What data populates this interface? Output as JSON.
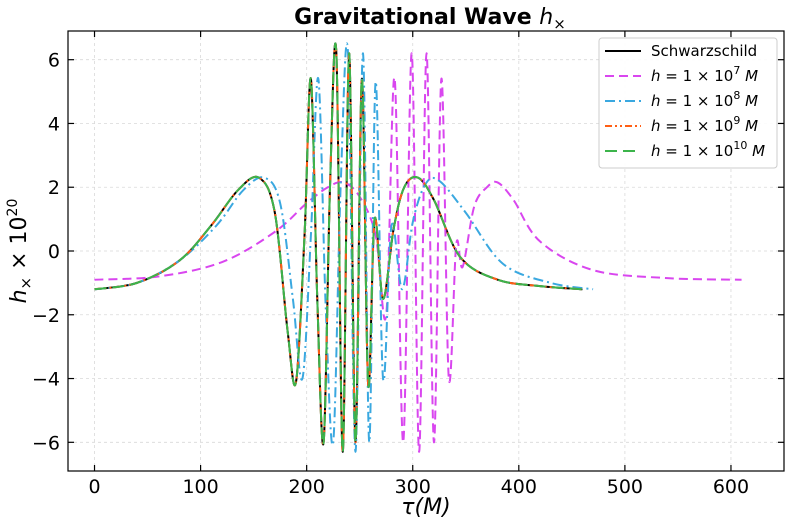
{
  "chart_data": {
    "type": "line",
    "title": "Gravitational Wave h×",
    "title_main": "Gravitational Wave ",
    "title_math": "h",
    "title_sub": "×",
    "xlabel": "τ(M)",
    "xlabel_main": "τ",
    "xlabel_unit": "(M)",
    "ylabel": "h× × 10^20",
    "ylabel_h": "h",
    "ylabel_sub": "×",
    "ylabel_mid": " × 10",
    "ylabel_exp": "20",
    "xlim": [
      -25,
      650
    ],
    "ylim": [
      -6.9,
      6.9
    ],
    "xticks": [
      0,
      100,
      200,
      300,
      400,
      500,
      600
    ],
    "yticks": [
      -6,
      -4,
      -2,
      0,
      2,
      4,
      6
    ],
    "xtick_labels": [
      "0",
      "100",
      "200",
      "300",
      "400",
      "500",
      "600"
    ],
    "ytick_labels": [
      "−6",
      "−4",
      "−2",
      "0",
      "2",
      "4",
      "6"
    ],
    "grid": true,
    "legend_position": "top-right",
    "series": [
      {
        "name": "Schwarzschild",
        "label_parts": [
          "Schwarzschild"
        ],
        "color": "#000000",
        "style": "solid",
        "x": [
          0,
          40,
          80,
          110,
          135,
          155,
          170,
          182,
          190,
          198,
          204,
          210,
          216,
          222,
          228,
          234,
          240,
          246,
          252,
          258,
          264,
          272,
          282,
          292,
          305,
          320,
          345,
          380,
          420,
          460
        ],
        "y": [
          -1.2,
          -1.0,
          -0.3,
          0.8,
          1.9,
          2.3,
          1.2,
          -2.5,
          -4.1,
          0.5,
          5.4,
          -1.5,
          -6.0,
          2.0,
          6.2,
          -6.3,
          6.2,
          -6.0,
          5.4,
          -4.2,
          1.0,
          -1.5,
          0.7,
          2.0,
          2.3,
          1.6,
          -0.2,
          -0.9,
          -1.1,
          -1.2
        ]
      },
      {
        "name": "h = 1 × 10^7 M",
        "label_parts": [
          "h",
          " = 1 × 10",
          "7",
          " M"
        ],
        "color": "#d946ef",
        "style": "dashed",
        "x": [
          0,
          60,
          120,
          170,
          200,
          220,
          235,
          250,
          265,
          275,
          283,
          291,
          299,
          306,
          313,
          320,
          327,
          334,
          341,
          347,
          358,
          370,
          380,
          395,
          420,
          470,
          540,
          610
        ],
        "y": [
          -0.9,
          -0.8,
          -0.35,
          0.6,
          1.5,
          2.0,
          2.15,
          1.7,
          0.5,
          -2.0,
          5.4,
          -6.0,
          6.2,
          -6.3,
          6.2,
          -6.0,
          5.4,
          -4.0,
          0.2,
          -0.5,
          1.4,
          2.0,
          2.15,
          1.6,
          0.3,
          -0.6,
          -0.85,
          -0.9
        ]
      },
      {
        "name": "h = 1 × 10^8 M",
        "label_parts": [
          "h",
          " = 1 × 10",
          "8",
          " M"
        ],
        "color": "#3aa8e0",
        "style": "dashdot",
        "x": [
          0,
          40,
          80,
          115,
          140,
          160,
          175,
          187,
          196,
          204,
          211,
          218,
          225,
          232,
          239,
          246,
          253,
          259,
          265,
          272,
          280,
          290,
          300,
          312,
          325,
          350,
          385,
          430,
          470
        ],
        "y": [
          -1.2,
          -1.0,
          -0.3,
          0.8,
          1.9,
          2.3,
          1.5,
          -1.5,
          -4.0,
          0.5,
          5.4,
          -1.8,
          -6.0,
          2.0,
          6.2,
          -6.3,
          6.2,
          -6.0,
          5.3,
          -4.0,
          0.8,
          -1.2,
          0.9,
          2.1,
          2.2,
          1.2,
          -0.4,
          -1.0,
          -1.2
        ]
      },
      {
        "name": "h = 1 × 10^9 M",
        "label_parts": [
          "h",
          " = 1 × 10",
          "9",
          " M"
        ],
        "color": "#ff5e14",
        "style": "dashdotdot",
        "x": [
          0,
          40,
          80,
          110,
          135,
          155,
          170,
          182,
          190,
          198,
          204,
          210,
          216,
          222,
          228,
          234,
          240,
          246,
          252,
          258,
          264,
          272,
          282,
          292,
          305,
          320,
          345,
          380,
          420,
          460
        ],
        "y": [
          -1.2,
          -1.0,
          -0.3,
          0.8,
          1.9,
          2.3,
          1.2,
          -2.5,
          -4.1,
          0.5,
          5.4,
          -1.5,
          -6.0,
          2.0,
          6.2,
          -6.3,
          6.2,
          -6.0,
          5.4,
          -4.2,
          1.0,
          -1.5,
          0.7,
          2.0,
          2.3,
          1.6,
          -0.2,
          -0.9,
          -1.1,
          -1.2
        ]
      },
      {
        "name": "h = 1 × 10^10 M",
        "label_parts": [
          "h",
          " = 1 × 10",
          "10",
          " M"
        ],
        "color": "#3cb44b",
        "style": "longdash",
        "x": [
          0,
          40,
          80,
          110,
          135,
          155,
          170,
          182,
          190,
          198,
          204,
          210,
          216,
          222,
          228,
          234,
          240,
          246,
          252,
          258,
          264,
          272,
          282,
          292,
          305,
          320,
          345,
          380,
          420,
          460
        ],
        "y": [
          -1.2,
          -1.0,
          -0.3,
          0.8,
          1.9,
          2.3,
          1.2,
          -2.5,
          -4.1,
          0.5,
          5.4,
          -1.5,
          -6.0,
          2.0,
          6.2,
          -6.3,
          6.2,
          -6.0,
          5.4,
          -4.2,
          1.0,
          -1.5,
          0.7,
          2.0,
          2.3,
          1.6,
          -0.2,
          -0.9,
          -1.1,
          -1.2
        ]
      }
    ]
  }
}
